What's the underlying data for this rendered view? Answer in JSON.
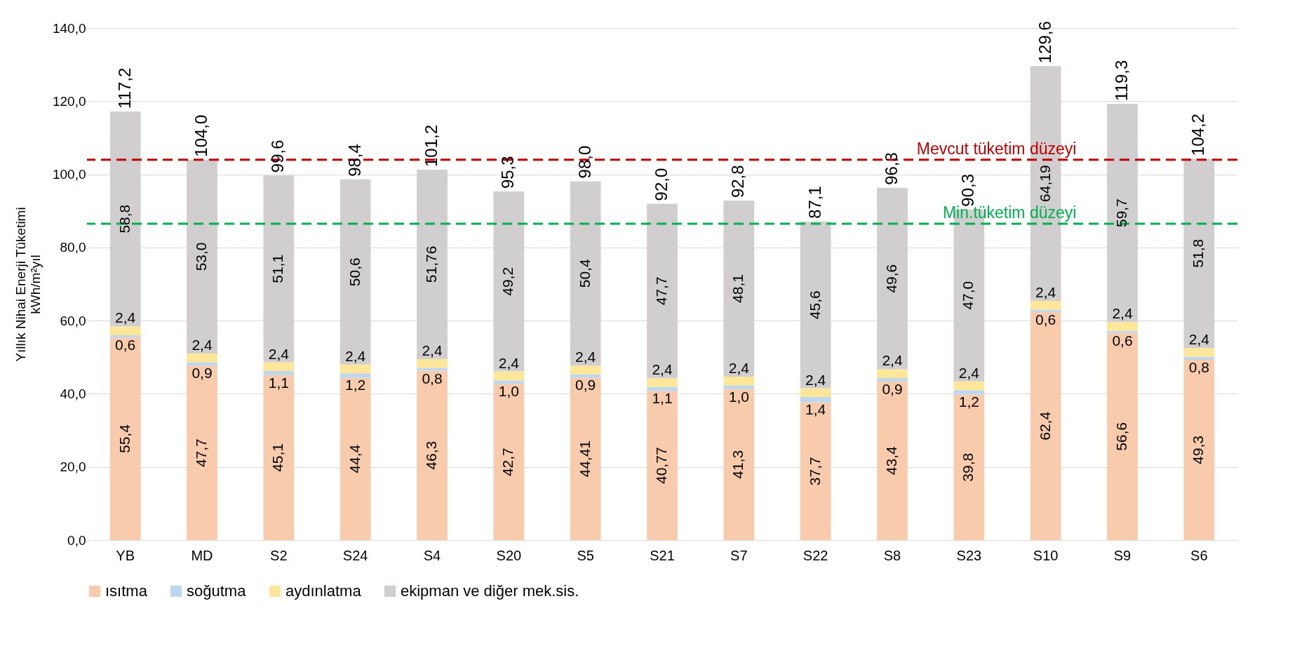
{
  "chart_data": {
    "type": "bar",
    "stacked": true,
    "ylabel": "Yıllık Nihai Enerji Tüketimi\nkWh/m²yıl",
    "categories": [
      "YB",
      "MD",
      "S2",
      "S24",
      "S4",
      "S20",
      "S5",
      "S21",
      "S7",
      "S22",
      "S8",
      "S23",
      "S10",
      "S9",
      "S6"
    ],
    "series": [
      {
        "name": "ısıtma",
        "color": "#f8cbad",
        "values": [
          55.4,
          47.7,
          45.1,
          44.4,
          46.3,
          42.7,
          44.41,
          40.77,
          41.3,
          37.7,
          43.4,
          39.8,
          62.4,
          56.6,
          49.3
        ],
        "value_labels": [
          "55,4",
          "47,7",
          "45,1",
          "44,4",
          "46,3",
          "42,7",
          "44,41",
          "40,77",
          "41,3",
          "37,7",
          "43,4",
          "39,8",
          "62,4",
          "56,6",
          "49,3"
        ]
      },
      {
        "name": "soğutma",
        "color": "#bdd7ee",
        "values": [
          0.6,
          0.9,
          1.1,
          1.2,
          0.8,
          1.0,
          0.9,
          1.1,
          1.0,
          1.4,
          0.9,
          1.2,
          0.6,
          0.6,
          0.8
        ],
        "value_labels": [
          "0,6",
          "0,9",
          "1,1",
          "1,2",
          "0,8",
          "1,0",
          "0,9",
          "1,1",
          "1,0",
          "1,4",
          "0,9",
          "1,2",
          "0,6",
          "0,6",
          "0,8"
        ]
      },
      {
        "name": "aydınlatma",
        "color": "#ffe699",
        "values": [
          2.4,
          2.4,
          2.4,
          2.4,
          2.4,
          2.4,
          2.4,
          2.4,
          2.4,
          2.4,
          2.4,
          2.4,
          2.4,
          2.4,
          2.4
        ],
        "value_labels": [
          "2,4",
          "2,4",
          "2,4",
          "2,4",
          "2,4",
          "2,4",
          "2,4",
          "2,4",
          "2,4",
          "2,4",
          "2,4",
          "2,4",
          "2,4",
          "2,4",
          "2,4"
        ]
      },
      {
        "name": "ekipman ve diğer mek.sis.",
        "color": "#d0cece",
        "values": [
          58.8,
          53.0,
          51.1,
          50.6,
          51.76,
          49.2,
          50.4,
          47.7,
          48.1,
          45.6,
          49.6,
          47.0,
          64.19,
          59.7,
          51.8
        ],
        "value_labels": [
          "58,8",
          "53,0",
          "51,1",
          "50,6",
          "51,76",
          "49,2",
          "50,4",
          "47,7",
          "48,1",
          "45,6",
          "49,6",
          "47,0",
          "64,19",
          "59,7",
          "51,8"
        ]
      }
    ],
    "totals": [
      "117,2",
      "104,0",
      "99,6",
      "98,4",
      "101,2",
      "95,3",
      "98,0",
      "92,0",
      "92,8",
      "87,1",
      "96,3",
      "90,3",
      "129,6",
      "119,3",
      "104,2"
    ],
    "ylim": [
      0,
      140
    ],
    "yticks": [
      {
        "value": 0,
        "label": "0,0"
      },
      {
        "value": 20,
        "label": "20,0"
      },
      {
        "value": 40,
        "label": "40,0"
      },
      {
        "value": 60,
        "label": "60,0"
      },
      {
        "value": 80,
        "label": "80,0"
      },
      {
        "value": 100,
        "label": "100,0"
      },
      {
        "value": 120,
        "label": "120,0"
      },
      {
        "value": 140,
        "label": "140,0"
      }
    ],
    "ref_lines": [
      {
        "axis": "y",
        "value": 104.0,
        "label": "Mevcut tüketim düzeyi",
        "color": "#c00000",
        "line_style": "dashed"
      },
      {
        "axis": "y",
        "value": 86.5,
        "label": "Min.tüketim düzeyi",
        "color": "#00b050",
        "line_style": "dashed"
      }
    ],
    "grid": "y",
    "legend": "bottom"
  }
}
